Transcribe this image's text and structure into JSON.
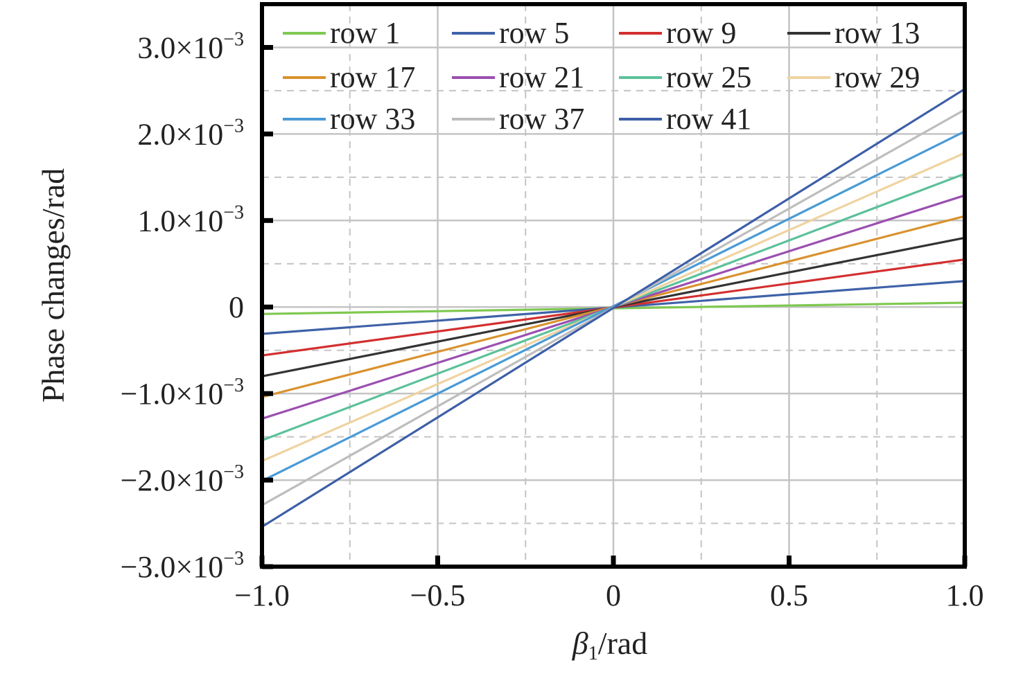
{
  "chart_data": {
    "type": "line",
    "xlabel": {
      "symbol": "β",
      "subscript": "1",
      "unit": "/rad"
    },
    "ylabel": "Phase changes/rad",
    "xlim": [
      -1.0,
      1.0
    ],
    "ylim": [
      -0.003,
      0.0035
    ],
    "grid": true,
    "legend_position": "top-left",
    "x_ticks": [
      {
        "value": -1.0,
        "label": "−1.0"
      },
      {
        "value": -0.5,
        "label": "−0.5"
      },
      {
        "value": 0,
        "label": "0"
      },
      {
        "value": 0.5,
        "label": "0.5"
      },
      {
        "value": 1.0,
        "label": "1.0"
      }
    ],
    "y_ticks": [
      {
        "value": 0.003,
        "mantissa": "3.0×10",
        "exponent": "−3"
      },
      {
        "value": 0.002,
        "mantissa": "2.0×10",
        "exponent": "−3"
      },
      {
        "value": 0.001,
        "mantissa": "1.0×10",
        "exponent": "−3"
      },
      {
        "value": 0,
        "mantissa": "0",
        "exponent": ""
      },
      {
        "value": -0.001,
        "mantissa": "−1.0×10",
        "exponent": "−3"
      },
      {
        "value": -0.002,
        "mantissa": "−2.0×10",
        "exponent": "−3"
      },
      {
        "value": -0.003,
        "mantissa": "−3.0×10",
        "exponent": "−3"
      }
    ],
    "x": [
      -1.0,
      1.0
    ],
    "series": [
      {
        "name": "row 1",
        "color": "#7ec850",
        "values": [
          -8e-05,
          5e-05
        ]
      },
      {
        "name": "row 5",
        "color": "#3f62a8",
        "values": [
          -0.00031,
          0.0003
        ]
      },
      {
        "name": "row 9",
        "color": "#d32f2f",
        "values": [
          -0.00056,
          0.00055
        ]
      },
      {
        "name": "row 13",
        "color": "#333333",
        "values": [
          -0.0008,
          0.0008
        ]
      },
      {
        "name": "row 17",
        "color": "#d9922e",
        "values": [
          -0.00104,
          0.00105
        ]
      },
      {
        "name": "row 21",
        "color": "#9b4fb0",
        "values": [
          -0.00129,
          0.00129
        ]
      },
      {
        "name": "row 25",
        "color": "#5cc19a",
        "values": [
          -0.00154,
          0.00154
        ]
      },
      {
        "name": "row 29",
        "color": "#efd3a0",
        "values": [
          -0.00178,
          0.00178
        ]
      },
      {
        "name": "row 33",
        "color": "#4a9ad6",
        "values": [
          -0.00201,
          0.00203
        ]
      },
      {
        "name": "row 37",
        "color": "#bdbdbd",
        "values": [
          -0.00229,
          0.00228
        ]
      },
      {
        "name": "row 41",
        "color": "#3d5fa8",
        "values": [
          -0.00254,
          0.00252
        ]
      }
    ]
  }
}
